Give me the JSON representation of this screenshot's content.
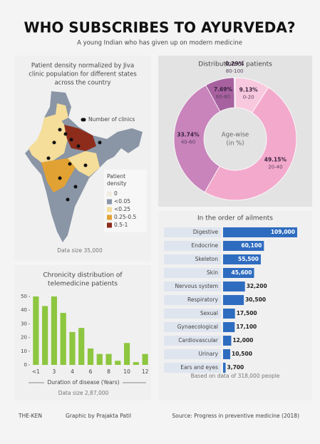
{
  "header": {
    "title": "WHO SUBSCRIBES TO AYURVEDA?",
    "subtitle": "A young Indian who has given up on modern medicine"
  },
  "map": {
    "title": [
      "Patient density normalized by Jiva",
      "clinic population for different states",
      "across the country"
    ],
    "clinics_label": "Number of clinics",
    "legend_title": [
      "Patient",
      "density"
    ],
    "legend": [
      {
        "label": "0",
        "color": "#f1ece0"
      },
      {
        "label": "<0.05",
        "color": "#8a95a6"
      },
      {
        "label": "<0.25",
        "color": "#f5dd9a"
      },
      {
        "label": "0.25-0.5",
        "color": "#e2a233"
      },
      {
        "label": "0.5-1",
        "color": "#8e2c1c"
      }
    ],
    "note": "Data size 35,000"
  },
  "chart_data": [
    {
      "type": "pie",
      "donut": true,
      "title": "Distribution of patients",
      "center_label": [
        "Age-wise",
        "(in %)"
      ],
      "categories": [
        "0-20",
        "20-40",
        "40-60",
        "60-80",
        "80-100"
      ],
      "values": [
        9.13,
        49.15,
        33.74,
        7.69,
        0.29
      ],
      "value_labels": [
        "9.13%",
        "49.15%",
        "33.74%",
        "7.69%",
        "0.29%"
      ],
      "colors": [
        "#f8c9de",
        "#f3a9cc",
        "#c884bb",
        "#a7619f",
        "#ead3e6"
      ]
    },
    {
      "type": "bar",
      "orientation": "horizontal",
      "title": "In the order of ailments",
      "categories": [
        "Digestive",
        "Endocrine",
        "Skeleton",
        "Skin",
        "Nervous system",
        "Respiratory",
        "Sexual",
        "Gynaecological",
        "Cardiovascular",
        "Urinary",
        "Ears and eyes"
      ],
      "values": [
        109000,
        60100,
        55500,
        45600,
        32200,
        30500,
        17500,
        17100,
        12000,
        10500,
        3700
      ],
      "value_labels": [
        "109,000",
        "60,100",
        "55,500",
        "45,600",
        "32,200",
        "30,500",
        "17,500",
        "17,100",
        "12,000",
        "10,500",
        "3,700"
      ],
      "color": "#2e6cc0",
      "note": "Based on data of 318,000 people"
    },
    {
      "type": "bar",
      "orientation": "vertical",
      "title": [
        "Chronicity distribution of",
        "telemedicine patients"
      ],
      "categories": [
        "<1",
        null,
        "3",
        null,
        "4",
        null,
        "6",
        null,
        "8",
        null,
        "10",
        null,
        "12"
      ],
      "values": [
        50,
        43,
        50,
        38,
        24,
        27,
        12,
        8,
        8,
        3,
        16,
        2,
        8
      ],
      "color": "#8dc63f",
      "ylim": [
        0,
        50
      ],
      "yticks": [
        0,
        10,
        20,
        30,
        40,
        50
      ],
      "xlabel": "Duration of disease (Years)",
      "note": "Data size 2,87,000"
    }
  ],
  "footer": {
    "brand": "THE-KEN",
    "credit": "Graphic by Prajakta Patil",
    "source": "Source: Progress in preventive medicine (2018)"
  }
}
